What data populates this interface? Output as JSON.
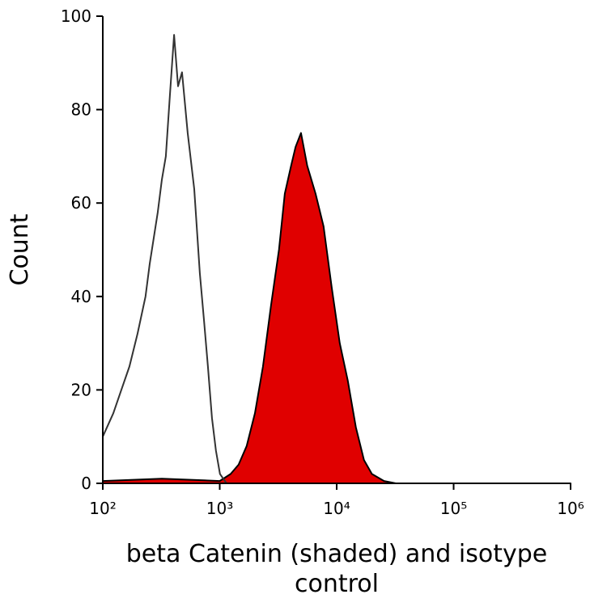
{
  "chart_data": {
    "type": "histogram-overlay",
    "x_label_lines": [
      "beta Catenin (shaded) and isotype",
      "control"
    ],
    "y_label": "Count",
    "xscale": "log",
    "xlim": [
      100,
      1000000
    ],
    "ylim": [
      0,
      100
    ],
    "xticks": [
      {
        "value": 100,
        "label": "10²"
      },
      {
        "value": 1000,
        "label": "10³"
      },
      {
        "value": 10000,
        "label": "10⁴"
      },
      {
        "value": 100000,
        "label": "10⁵"
      },
      {
        "value": 1000000,
        "label": "10⁶"
      }
    ],
    "yticks": [
      0,
      20,
      40,
      60,
      80,
      100
    ],
    "series": [
      {
        "color": "#e00000",
        "outline": "#000000",
        "fill": true,
        "x": [
          100,
          320,
          1000,
          1240,
          1450,
          1700,
          2000,
          2340,
          2740,
          3210,
          3600,
          4080,
          4450,
          4955,
          5600,
          6600,
          7730,
          9060,
          10620,
          12440,
          14580,
          17100,
          20000,
          25400,
          32000,
          1000000
        ],
        "values": [
          0.5,
          1,
          0.5,
          2,
          4,
          8,
          15,
          25,
          38,
          50,
          62,
          68,
          72,
          75,
          68,
          62,
          55,
          42,
          30,
          22,
          12,
          5,
          2,
          0.5,
          0,
          0
        ]
      },
      {
        "color": "#333333",
        "fill": false,
        "x": [
          100,
          123,
          144,
          169,
          198,
          232,
          252,
          295,
          320,
          346,
          375,
          407,
          440,
          476,
          532,
          605,
          676,
          733,
          793,
          858,
          928,
          1004,
          1144
        ],
        "values": [
          10,
          15,
          20,
          25,
          32,
          40,
          47,
          58,
          65,
          70,
          83,
          96,
          85,
          88,
          75,
          63,
          45,
          35,
          25,
          14,
          7,
          2,
          0
        ]
      }
    ]
  }
}
